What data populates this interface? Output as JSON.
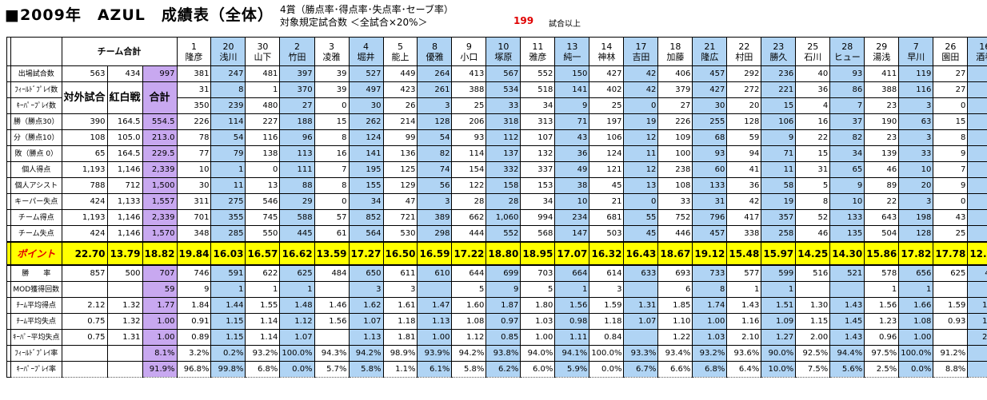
{
  "header": {
    "title": "■2009年　AZUL　成績表（全体）",
    "subtitle_1": "4賞（勝点率･得点率･失点率･セーブ率）",
    "subtitle_2": "対象規定試合数 ＜全試合×20%＞",
    "min_games_value": "199",
    "min_games_text": "試合以上"
  },
  "table": {
    "team_total_label": "チーム合計",
    "subcols": [
      "対外試合",
      "紅白戦",
      "合計"
    ],
    "highlight_colors": {
      "blue": "#b0d4f4",
      "purple": "#c8a8f0",
      "points": "#ffff00",
      "min_games": "#e00000"
    },
    "players": [
      {
        "no": "1",
        "name": "隆彦",
        "hl": false
      },
      {
        "no": "20",
        "name": "浅川",
        "hl": true
      },
      {
        "no": "30",
        "name": "山下",
        "hl": false
      },
      {
        "no": "2",
        "name": "竹田",
        "hl": true
      },
      {
        "no": "3",
        "name": "凌雅",
        "hl": false
      },
      {
        "no": "4",
        "name": "堀井",
        "hl": true
      },
      {
        "no": "5",
        "name": "能上",
        "hl": false
      },
      {
        "no": "8",
        "name": "優雅",
        "hl": true
      },
      {
        "no": "9",
        "name": "小口",
        "hl": false
      },
      {
        "no": "10",
        "name": "塚原",
        "hl": true
      },
      {
        "no": "11",
        "name": "雅彦",
        "hl": false
      },
      {
        "no": "13",
        "name": "純一",
        "hl": true
      },
      {
        "no": "14",
        "name": "神林",
        "hl": false
      },
      {
        "no": "17",
        "name": "吉田",
        "hl": true
      },
      {
        "no": "18",
        "name": "加藤",
        "hl": false
      },
      {
        "no": "21",
        "name": "隆広",
        "hl": true
      },
      {
        "no": "22",
        "name": "村田",
        "hl": false
      },
      {
        "no": "23",
        "name": "勝久",
        "hl": true
      },
      {
        "no": "25",
        "name": "石川",
        "hl": false
      },
      {
        "no": "28",
        "name": "ヒュー",
        "hl": true
      },
      {
        "no": "29",
        "name": "湯浅",
        "hl": false
      },
      {
        "no": "7",
        "name": "早川",
        "hl": true
      },
      {
        "no": "26",
        "name": "園田",
        "hl": false
      },
      {
        "no": "16",
        "name": "酒巻",
        "hl": true
      }
    ],
    "rows": [
      {
        "label": "出場試合数",
        "v": [
          "563",
          "434",
          "997",
          "381",
          "247",
          "481",
          "397",
          "39",
          "527",
          "449",
          "264",
          "413",
          "567",
          "552",
          "150",
          "427",
          "42",
          "406",
          "457",
          "292",
          "236",
          "40",
          "93",
          "411",
          "119",
          "27",
          "34"
        ]
      },
      {
        "label": "ﾌｨｰﾙﾄﾞﾌﾟﾚｲ数",
        "v": [
          "31",
          "8",
          "",
          "31",
          "8",
          "1",
          "370",
          "39",
          "497",
          "423",
          "261",
          "388",
          "534",
          "518",
          "141",
          "402",
          "42",
          "379",
          "427",
          "272",
          "221",
          "36",
          "86",
          "388",
          "116",
          "27",
          "31"
        ]
      },
      {
        "label": "ｷｰﾊﾟｰﾌﾟﾚｲ数",
        "v": [
          "350",
          "239",
          "480",
          "350",
          "239",
          "480",
          "27",
          "0",
          "30",
          "26",
          "3",
          "25",
          "33",
          "34",
          "9",
          "25",
          "0",
          "27",
          "30",
          "20",
          "15",
          "4",
          "7",
          "23",
          "3",
          "0",
          "3"
        ]
      },
      {
        "label": "勝（勝点30）",
        "v": [
          "390",
          "164.5",
          "554.5",
          "226",
          "114",
          "227",
          "188",
          "15",
          "262",
          "214",
          "128",
          "206",
          "318",
          "313",
          "71",
          "197",
          "19",
          "226",
          "255",
          "128",
          "106",
          "16",
          "37",
          "190",
          "63",
          "15",
          "11"
        ]
      },
      {
        "label": "分（勝点10）",
        "v": [
          "108",
          "105.0",
          "213.0",
          "78",
          "54",
          "116",
          "96",
          "8",
          "124",
          "99",
          "54",
          "93",
          "112",
          "107",
          "43",
          "106",
          "12",
          "109",
          "68",
          "59",
          "9",
          "22",
          "82",
          "23",
          "3",
          "8",
          ""
        ]
      },
      {
        "label": "敗（勝点 0）",
        "v": [
          "65",
          "164.5",
          "229.5",
          "77",
          "79",
          "138",
          "113",
          "16",
          "141",
          "136",
          "82",
          "114",
          "137",
          "132",
          "36",
          "124",
          "11",
          "100",
          "93",
          "94",
          "71",
          "15",
          "34",
          "139",
          "33",
          "9",
          "15"
        ]
      },
      {
        "label": "個人得点",
        "v": [
          "1,193",
          "1,146",
          "2,339",
          "10",
          "1",
          "0",
          "111",
          "7",
          "195",
          "125",
          "74",
          "154",
          "332",
          "337",
          "49",
          "121",
          "12",
          "238",
          "60",
          "41",
          "11",
          "31",
          "65",
          "46",
          "10",
          "7",
          ""
        ]
      },
      {
        "label": "個人アシスト",
        "v": [
          "788",
          "712",
          "1,500",
          "30",
          "11",
          "13",
          "88",
          "8",
          "155",
          "129",
          "56",
          "122",
          "158",
          "153",
          "38",
          "45",
          "13",
          "108",
          "133",
          "36",
          "58",
          "5",
          "9",
          "89",
          "20",
          "9",
          "6"
        ]
      },
      {
        "label": "キーパー失点",
        "v": [
          "424",
          "1,133",
          "1,557",
          "311",
          "275",
          "546",
          "29",
          "0",
          "34",
          "47",
          "3",
          "28",
          "28",
          "34",
          "10",
          "21",
          "0",
          "33",
          "31",
          "42",
          "19",
          "8",
          "10",
          "22",
          "3",
          "0",
          "7"
        ]
      },
      {
        "label": "チーム得点",
        "v": [
          "1,193",
          "1,146",
          "2,339",
          "701",
          "355",
          "745",
          "588",
          "57",
          "852",
          "721",
          "389",
          "662",
          "1,060",
          "994",
          "234",
          "681",
          "55",
          "752",
          "796",
          "417",
          "357",
          "52",
          "133",
          "643",
          "198",
          "43",
          "43"
        ]
      },
      {
        "label": "チーム失点",
        "v": [
          "424",
          "1,146",
          "1,570",
          "348",
          "285",
          "550",
          "445",
          "61",
          "564",
          "530",
          "298",
          "444",
          "552",
          "568",
          "147",
          "503",
          "45",
          "446",
          "457",
          "338",
          "258",
          "46",
          "135",
          "504",
          "128",
          "25",
          "54"
        ]
      },
      {
        "label": "ポイント",
        "points": true,
        "v": [
          "22.70",
          "13.79",
          "18.82",
          "19.84",
          "16.03",
          "16.57",
          "16.62",
          "13.59",
          "17.27",
          "16.50",
          "16.59",
          "17.22",
          "18.80",
          "18.95",
          "17.07",
          "16.32",
          "16.43",
          "18.67",
          "19.12",
          "15.48",
          "15.97",
          "14.25",
          "14.30",
          "15.86",
          "17.82",
          "17.78",
          "12.06"
        ]
      },
      {
        "label": "勝　　率",
        "v": [
          "857",
          "500",
          "707",
          "746",
          "591",
          "622",
          "625",
          "484",
          "650",
          "611",
          "610",
          "644",
          "699",
          "703",
          "664",
          "614",
          "633",
          "693",
          "733",
          "577",
          "599",
          "516",
          "521",
          "578",
          "656",
          "625",
          "423"
        ]
      },
      {
        "label": "MOD獲得回数",
        "v": [
          "",
          "",
          "59",
          "9",
          "1",
          "1",
          "1",
          "",
          "3",
          "3",
          "",
          "5",
          "9",
          "5",
          "1",
          "3",
          "",
          "6",
          "8",
          "1",
          "1",
          "",
          "",
          "1",
          "1",
          "",
          ""
        ]
      },
      {
        "label": "ﾁｰﾑ平均得点",
        "v": [
          "2.12",
          "1.32",
          "1.77",
          "1.84",
          "1.44",
          "1.55",
          "1.48",
          "1.46",
          "1.62",
          "1.61",
          "1.47",
          "1.60",
          "1.87",
          "1.80",
          "1.56",
          "1.59",
          "1.31",
          "1.85",
          "1.74",
          "1.43",
          "1.51",
          "1.30",
          "1.43",
          "1.56",
          "1.66",
          "1.59",
          "1.26"
        ]
      },
      {
        "label": "ﾁｰﾑ平均失点",
        "v": [
          "0.75",
          "1.32",
          "1.00",
          "0.91",
          "1.15",
          "1.14",
          "1.12",
          "1.56",
          "1.07",
          "1.18",
          "1.13",
          "1.08",
          "0.97",
          "1.03",
          "0.98",
          "1.18",
          "1.07",
          "1.10",
          "1.00",
          "1.16",
          "1.09",
          "1.15",
          "1.45",
          "1.23",
          "1.08",
          "0.93",
          "1.59"
        ]
      },
      {
        "label": "ｷｰﾊﾟｰ平均失点",
        "v": [
          "0.75",
          "1.31",
          "1.00",
          "0.89",
          "1.15",
          "1.14",
          "1.07",
          "",
          "1.13",
          "1.81",
          "1.00",
          "1.12",
          "0.85",
          "1.00",
          "1.11",
          "0.84",
          "",
          "1.22",
          "1.03",
          "2.10",
          "1.27",
          "2.00",
          "1.43",
          "0.96",
          "1.00",
          "",
          "2.33"
        ]
      },
      {
        "label": "ﾌｨｰﾙﾄﾞﾌﾟﾚｲ率",
        "v": [
          "",
          "",
          "8.1%",
          "3.2%",
          "0.2%",
          "93.2%",
          "100.0%",
          "94.3%",
          "94.2%",
          "98.9%",
          "93.9%",
          "94.2%",
          "93.8%",
          "94.0%",
          "94.1%",
          "100.0%",
          "93.3%",
          "93.4%",
          "93.2%",
          "93.6%",
          "90.0%",
          "92.5%",
          "94.4%",
          "97.5%",
          "100.0%",
          "91.2%",
          ""
        ]
      },
      {
        "label": "ｷｰﾊﾟｰﾌﾟﾚｲ率",
        "v": [
          "",
          "",
          "91.9%",
          "96.8%",
          "99.8%",
          "6.8%",
          "0.0%",
          "5.7%",
          "5.8%",
          "1.1%",
          "6.1%",
          "5.8%",
          "6.2%",
          "6.0%",
          "5.9%",
          "0.0%",
          "6.7%",
          "6.6%",
          "6.8%",
          "6.4%",
          "10.0%",
          "7.5%",
          "5.6%",
          "2.5%",
          "0.0%",
          "8.8%",
          ""
        ]
      }
    ]
  }
}
